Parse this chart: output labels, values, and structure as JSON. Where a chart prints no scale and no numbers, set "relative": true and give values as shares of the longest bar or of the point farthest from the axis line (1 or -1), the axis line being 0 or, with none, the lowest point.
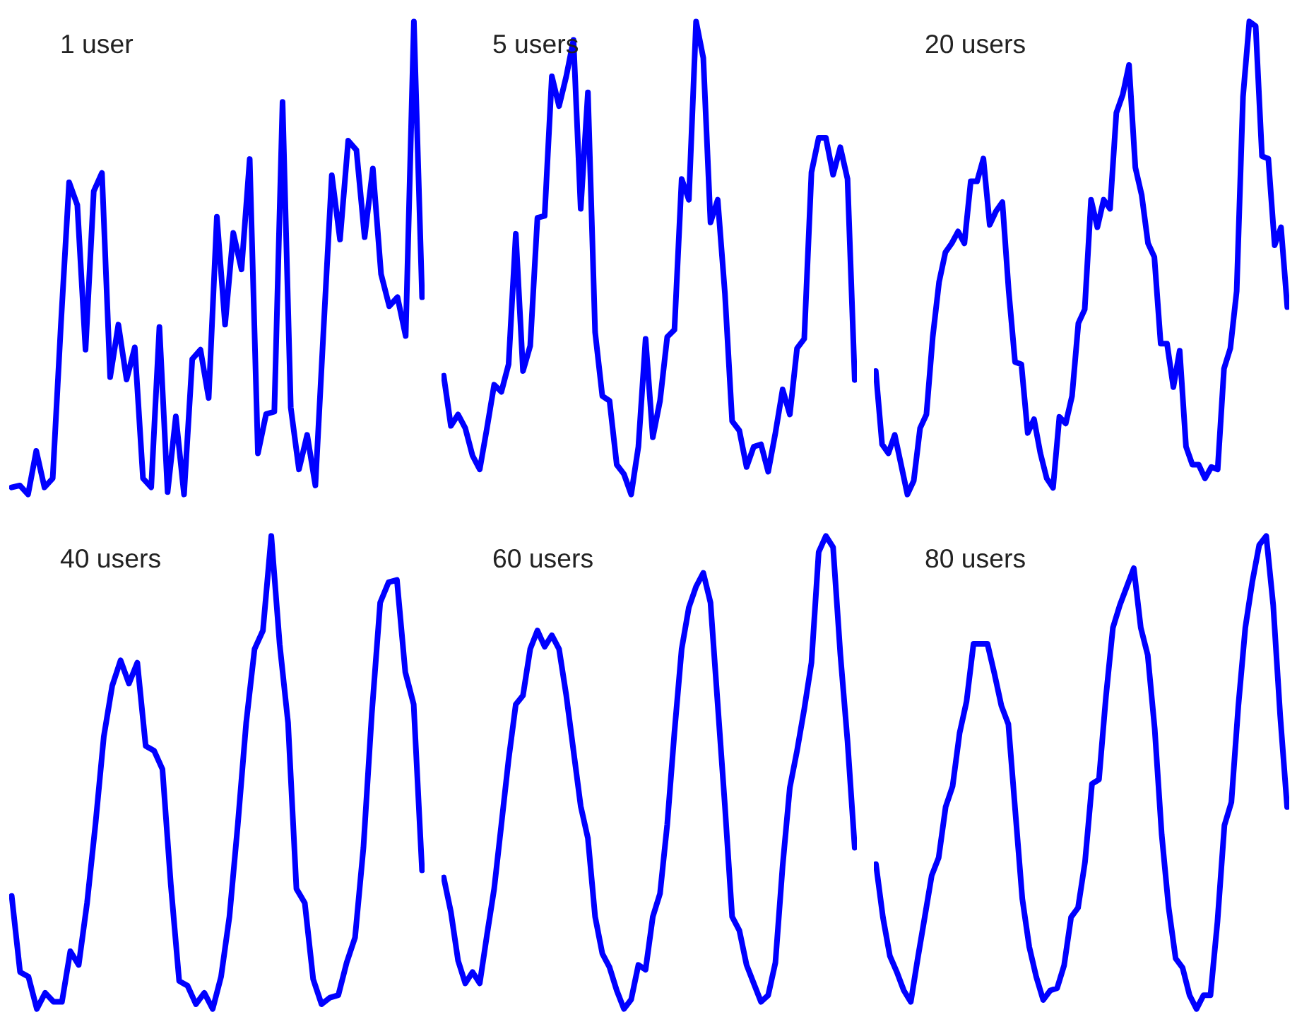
{
  "chart_data": [
    {
      "type": "line",
      "title": "1 user",
      "relative": true,
      "tick_labels": false,
      "categories": [
        null,
        null,
        null,
        null,
        null,
        null,
        null,
        null,
        null,
        null,
        null,
        null,
        null,
        null,
        null,
        null,
        null,
        null,
        null,
        null,
        null,
        null,
        null,
        null,
        null,
        null,
        null,
        null,
        null,
        null,
        null,
        null,
        null,
        null,
        null,
        null,
        null,
        null,
        null,
        null,
        null,
        null,
        null,
        null,
        null,
        null,
        null,
        null,
        null,
        null,
        null
      ],
      "series": [
        {
          "color": "#0000ff",
          "values": [
            0.015,
            0.019,
            0,
            0.092,
            0.015,
            0.034,
            0.359,
            0.66,
            0.612,
            0.306,
            0.641,
            0.68,
            0.248,
            0.359,
            0.243,
            0.311,
            0.034,
            0.015,
            0.354,
            0.005,
            0.165,
            0,
            0.286,
            0.306,
            0.204,
            0.587,
            0.359,
            0.553,
            0.476,
            0.709,
            0.087,
            0.17,
            0.175,
            0.83,
            0.184,
            0.053,
            0.126,
            0.019,
            0.35,
            0.675,
            0.539,
            0.748,
            0.728,
            0.544,
            0.689,
            0.466,
            0.398,
            0.417,
            0.335,
            1,
            0.417
          ]
        }
      ]
    },
    {
      "type": "line",
      "title": "5 users",
      "relative": true,
      "tick_labels": false,
      "categories": [
        null,
        null,
        null,
        null,
        null,
        null,
        null,
        null,
        null,
        null,
        null,
        null,
        null,
        null,
        null,
        null,
        null,
        null,
        null,
        null,
        null,
        null,
        null,
        null,
        null,
        null,
        null,
        null,
        null,
        null,
        null,
        null,
        null,
        null,
        null,
        null,
        null,
        null,
        null,
        null,
        null,
        null,
        null,
        null,
        null,
        null,
        null,
        null,
        null,
        null,
        null,
        null,
        null,
        null,
        null,
        null,
        null,
        null
      ],
      "series": [
        {
          "color": "#0000ff",
          "values": [
            0.251,
            0.145,
            0.169,
            0.14,
            0.082,
            0.053,
            0.14,
            0.232,
            0.217,
            0.275,
            0.551,
            0.261,
            0.314,
            0.585,
            0.589,
            0.884,
            0.821,
            0.884,
            0.961,
            0.604,
            0.85,
            0.343,
            0.208,
            0.198,
            0.063,
            0.043,
            0,
            0.101,
            0.329,
            0.121,
            0.198,
            0.333,
            0.348,
            0.667,
            0.623,
            1,
            0.923,
            0.575,
            0.623,
            0.425,
            0.155,
            0.135,
            0.058,
            0.101,
            0.106,
            0.048,
            0.13,
            0.222,
            0.169,
            0.309,
            0.329,
            0.681,
            0.754,
            0.754,
            0.676,
            0.734,
            0.667,
            0.242
          ]
        }
      ]
    },
    {
      "type": "line",
      "title": "20 users",
      "relative": true,
      "tick_labels": false,
      "categories": [
        null,
        null,
        null,
        null,
        null,
        null,
        null,
        null,
        null,
        null,
        null,
        null,
        null,
        null,
        null,
        null,
        null,
        null,
        null,
        null,
        null,
        null,
        null,
        null,
        null,
        null,
        null,
        null,
        null,
        null,
        null,
        null,
        null,
        null,
        null,
        null,
        null,
        null,
        null,
        null,
        null,
        null,
        null,
        null,
        null,
        null,
        null,
        null,
        null,
        null,
        null,
        null,
        null,
        null,
        null,
        null,
        null,
        null,
        null,
        null,
        null,
        null,
        null,
        null,
        null,
        null
      ],
      "series": [
        {
          "color": "#0000ff",
          "values": [
            0.261,
            0.106,
            0.087,
            0.126,
            0.063,
            0,
            0.029,
            0.14,
            0.169,
            0.333,
            0.449,
            0.512,
            0.531,
            0.556,
            0.531,
            0.662,
            0.662,
            0.71,
            0.57,
            0.599,
            0.618,
            0.43,
            0.28,
            0.275,
            0.13,
            0.159,
            0.087,
            0.034,
            0.014,
            0.164,
            0.15,
            0.208,
            0.362,
            0.391,
            0.623,
            0.565,
            0.623,
            0.604,
            0.807,
            0.845,
            0.908,
            0.691,
            0.633,
            0.531,
            0.502,
            0.319,
            0.319,
            0.227,
            0.304,
            0.101,
            0.063,
            0.063,
            0.034,
            0.058,
            0.053,
            0.266,
            0.309,
            0.43,
            0.841,
            1,
            0.99,
            0.715,
            0.71,
            0.527,
            0.565,
            0.396
          ]
        }
      ]
    },
    {
      "type": "line",
      "title": "40 users",
      "relative": true,
      "tick_labels": false,
      "categories": [
        null,
        null,
        null,
        null,
        null,
        null,
        null,
        null,
        null,
        null,
        null,
        null,
        null,
        null,
        null,
        null,
        null,
        null,
        null,
        null,
        null,
        null,
        null,
        null,
        null,
        null,
        null,
        null,
        null,
        null,
        null,
        null,
        null,
        null,
        null,
        null,
        null,
        null,
        null,
        null,
        null,
        null,
        null,
        null,
        null,
        null,
        null,
        null,
        null,
        null
      ],
      "series": [
        {
          "color": "#0000ff",
          "values": [
            0.239,
            0.078,
            0.068,
            0,
            0.034,
            0.015,
            0.015,
            0.122,
            0.093,
            0.224,
            0.39,
            0.576,
            0.683,
            0.737,
            0.688,
            0.732,
            0.556,
            0.546,
            0.507,
            0.263,
            0.059,
            0.049,
            0.01,
            0.034,
            0,
            0.068,
            0.195,
            0.39,
            0.605,
            0.761,
            0.8,
            1,
            0.771,
            0.605,
            0.254,
            0.224,
            0.063,
            0.01,
            0.024,
            0.029,
            0.098,
            0.151,
            0.341,
            0.624,
            0.859,
            0.902,
            0.907,
            0.712,
            0.644,
            0.293
          ]
        }
      ]
    },
    {
      "type": "line",
      "title": "60 users",
      "relative": true,
      "tick_labels": false,
      "categories": [
        null,
        null,
        null,
        null,
        null,
        null,
        null,
        null,
        null,
        null,
        null,
        null,
        null,
        null,
        null,
        null,
        null,
        null,
        null,
        null,
        null,
        null,
        null,
        null,
        null,
        null,
        null,
        null,
        null,
        null,
        null,
        null,
        null,
        null,
        null,
        null,
        null,
        null,
        null,
        null,
        null,
        null,
        null,
        null,
        null,
        null,
        null,
        null,
        null,
        null,
        null,
        null,
        null,
        null,
        null,
        null,
        null,
        null
      ],
      "series": [
        {
          "color": "#0000ff",
          "values": [
            0.278,
            0.205,
            0.102,
            0.054,
            0.078,
            0.054,
            0.156,
            0.254,
            0.39,
            0.527,
            0.644,
            0.663,
            0.761,
            0.8,
            0.766,
            0.79,
            0.761,
            0.663,
            0.546,
            0.429,
            0.361,
            0.195,
            0.117,
            0.088,
            0.039,
            0,
            0.02,
            0.093,
            0.083,
            0.195,
            0.244,
            0.39,
            0.585,
            0.761,
            0.849,
            0.893,
            0.922,
            0.859,
            0.644,
            0.429,
            0.195,
            0.166,
            0.093,
            0.054,
            0.015,
            0.029,
            0.098,
            0.302,
            0.468,
            0.546,
            0.634,
            0.732,
            0.966,
            1,
            0.976,
            0.751,
            0.566,
            0.341
          ]
        }
      ]
    },
    {
      "type": "line",
      "title": "80 users",
      "relative": true,
      "tick_labels": false,
      "categories": [
        null,
        null,
        null,
        null,
        null,
        null,
        null,
        null,
        null,
        null,
        null,
        null,
        null,
        null,
        null,
        null,
        null,
        null,
        null,
        null,
        null,
        null,
        null,
        null,
        null,
        null,
        null,
        null,
        null,
        null,
        null,
        null,
        null,
        null,
        null,
        null,
        null,
        null,
        null,
        null,
        null,
        null,
        null,
        null,
        null,
        null,
        null,
        null,
        null,
        null,
        null,
        null,
        null,
        null,
        null,
        null,
        null,
        null,
        null,
        null
      ],
      "series": [
        {
          "color": "#0000ff",
          "values": [
            0.306,
            0.194,
            0.112,
            0.078,
            0.039,
            0.015,
            0.107,
            0.194,
            0.282,
            0.32,
            0.427,
            0.471,
            0.583,
            0.65,
            0.772,
            0.772,
            0.772,
            0.709,
            0.641,
            0.602,
            0.417,
            0.233,
            0.131,
            0.068,
            0.019,
            0.039,
            0.044,
            0.092,
            0.194,
            0.214,
            0.311,
            0.476,
            0.485,
            0.66,
            0.806,
            0.854,
            0.893,
            0.932,
            0.806,
            0.748,
            0.592,
            0.369,
            0.214,
            0.107,
            0.087,
            0.029,
            0,
            0.029,
            0.029,
            0.184,
            0.388,
            0.437,
            0.641,
            0.806,
            0.903,
            0.981,
            1,
            0.854,
            0.621,
            0.427
          ]
        }
      ]
    }
  ]
}
